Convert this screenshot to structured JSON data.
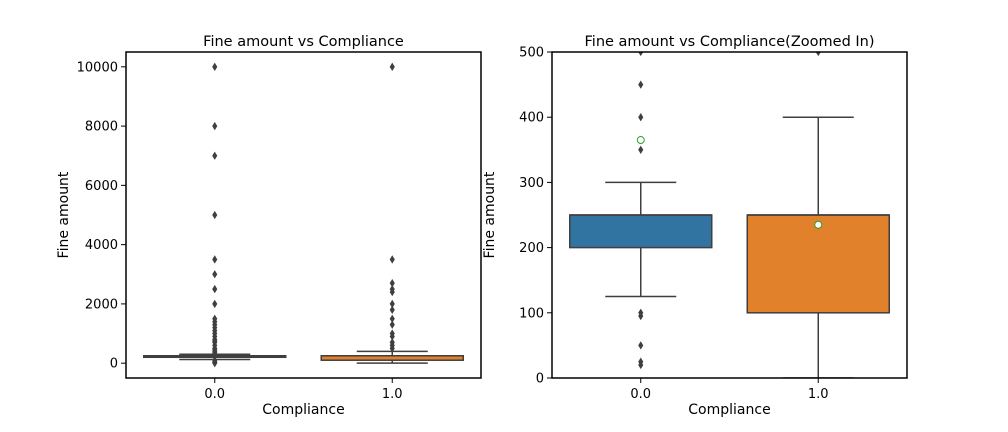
{
  "chart_data": [
    {
      "type": "box",
      "title": "Fine amount vs Compliance",
      "xlabel": "Compliance",
      "ylabel": "Fine amount",
      "categories": [
        "0.0",
        "1.0"
      ],
      "ylim": [
        -500,
        10500
      ],
      "yticks": [
        0,
        2000,
        4000,
        6000,
        8000,
        10000
      ],
      "colors": [
        "#3274a1",
        "#e1812c"
      ],
      "boxes": [
        {
          "category": "0.0",
          "whisker_low": 125,
          "q1": 200,
          "median": 250,
          "q3": 250,
          "whisker_high": 300,
          "mean": 365,
          "outliers": [
            0,
            20,
            50,
            100,
            350,
            400,
            450,
            500,
            600,
            700,
            750,
            800,
            900,
            1000,
            1100,
            1200,
            1300,
            1400,
            1500,
            2000,
            2500,
            3000,
            3500,
            5000,
            7000,
            8000,
            10000
          ]
        },
        {
          "category": "1.0",
          "whisker_low": 0,
          "q1": 100,
          "median": 250,
          "q3": 250,
          "whisker_high": 400,
          "mean": 235,
          "outliers": [
            500,
            600,
            700,
            900,
            1000,
            1300,
            1500,
            1800,
            2000,
            2400,
            2500,
            2700,
            3500,
            10000
          ]
        }
      ],
      "show_means": false,
      "grid": false
    },
    {
      "type": "box",
      "title": "Fine amount vs Compliance(Zoomed In)",
      "xlabel": "Compliance",
      "ylabel": "Fine amount",
      "categories": [
        "0.0",
        "1.0"
      ],
      "ylim": [
        0,
        500
      ],
      "yticks": [
        0,
        100,
        200,
        300,
        400,
        500
      ],
      "colors": [
        "#3274a1",
        "#e1812c"
      ],
      "boxes": [
        {
          "category": "0.0",
          "whisker_low": 125,
          "q1": 200,
          "median": 250,
          "q3": 250,
          "whisker_high": 300,
          "mean": 365,
          "outliers": [
            20,
            25,
            50,
            95,
            100,
            350,
            400,
            450,
            500
          ]
        },
        {
          "category": "1.0",
          "whisker_low": 0,
          "q1": 100,
          "median": 250,
          "q3": 250,
          "whisker_high": 400,
          "mean": 235,
          "outliers": [
            500
          ]
        }
      ],
      "show_means": true,
      "grid": false
    }
  ]
}
